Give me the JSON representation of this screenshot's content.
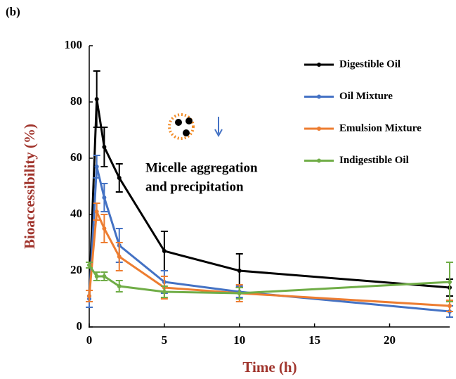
{
  "chart_data": {
    "type": "line",
    "panel_label": "(b)",
    "x_label": "Time (h)",
    "y_label": "Bioaccessibility (%)",
    "annotation": [
      "Micelle aggregation",
      "and precipitation"
    ],
    "x": [
      0,
      0.5,
      1,
      2,
      5,
      10,
      24
    ],
    "series": [
      {
        "name": "Digestible Oil",
        "color": "#000000",
        "values": [
          11,
          81,
          64,
          53,
          27,
          20,
          14
        ],
        "errors": [
          2,
          10,
          7,
          5,
          7,
          6,
          3
        ]
      },
      {
        "name": "Oil Mixture",
        "color": "#4472c4",
        "values": [
          10,
          57,
          46,
          29,
          16,
          12.5,
          5.5
        ],
        "errors": [
          3,
          4,
          5,
          6,
          4,
          2,
          2
        ]
      },
      {
        "name": "Emulsion Mixture",
        "color": "#ed7d31",
        "values": [
          11,
          41,
          35,
          25,
          14,
          12,
          7.5
        ],
        "errors": [
          2,
          3,
          5,
          5,
          4,
          3,
          2
        ]
      },
      {
        "name": "Indigestible Oil",
        "color": "#70ad47",
        "values": [
          22,
          18,
          18,
          14.5,
          12.5,
          12,
          16
        ],
        "errors": [
          1,
          1.5,
          1.5,
          2,
          2,
          2,
          7
        ]
      }
    ],
    "xlim": [
      0,
      24
    ],
    "ylim": [
      0,
      100
    ],
    "xticks": [
      0,
      5,
      10,
      15,
      20
    ],
    "yticks": [
      0,
      20,
      40,
      60,
      80,
      100
    ],
    "grid": false,
    "legend": "top-right"
  }
}
